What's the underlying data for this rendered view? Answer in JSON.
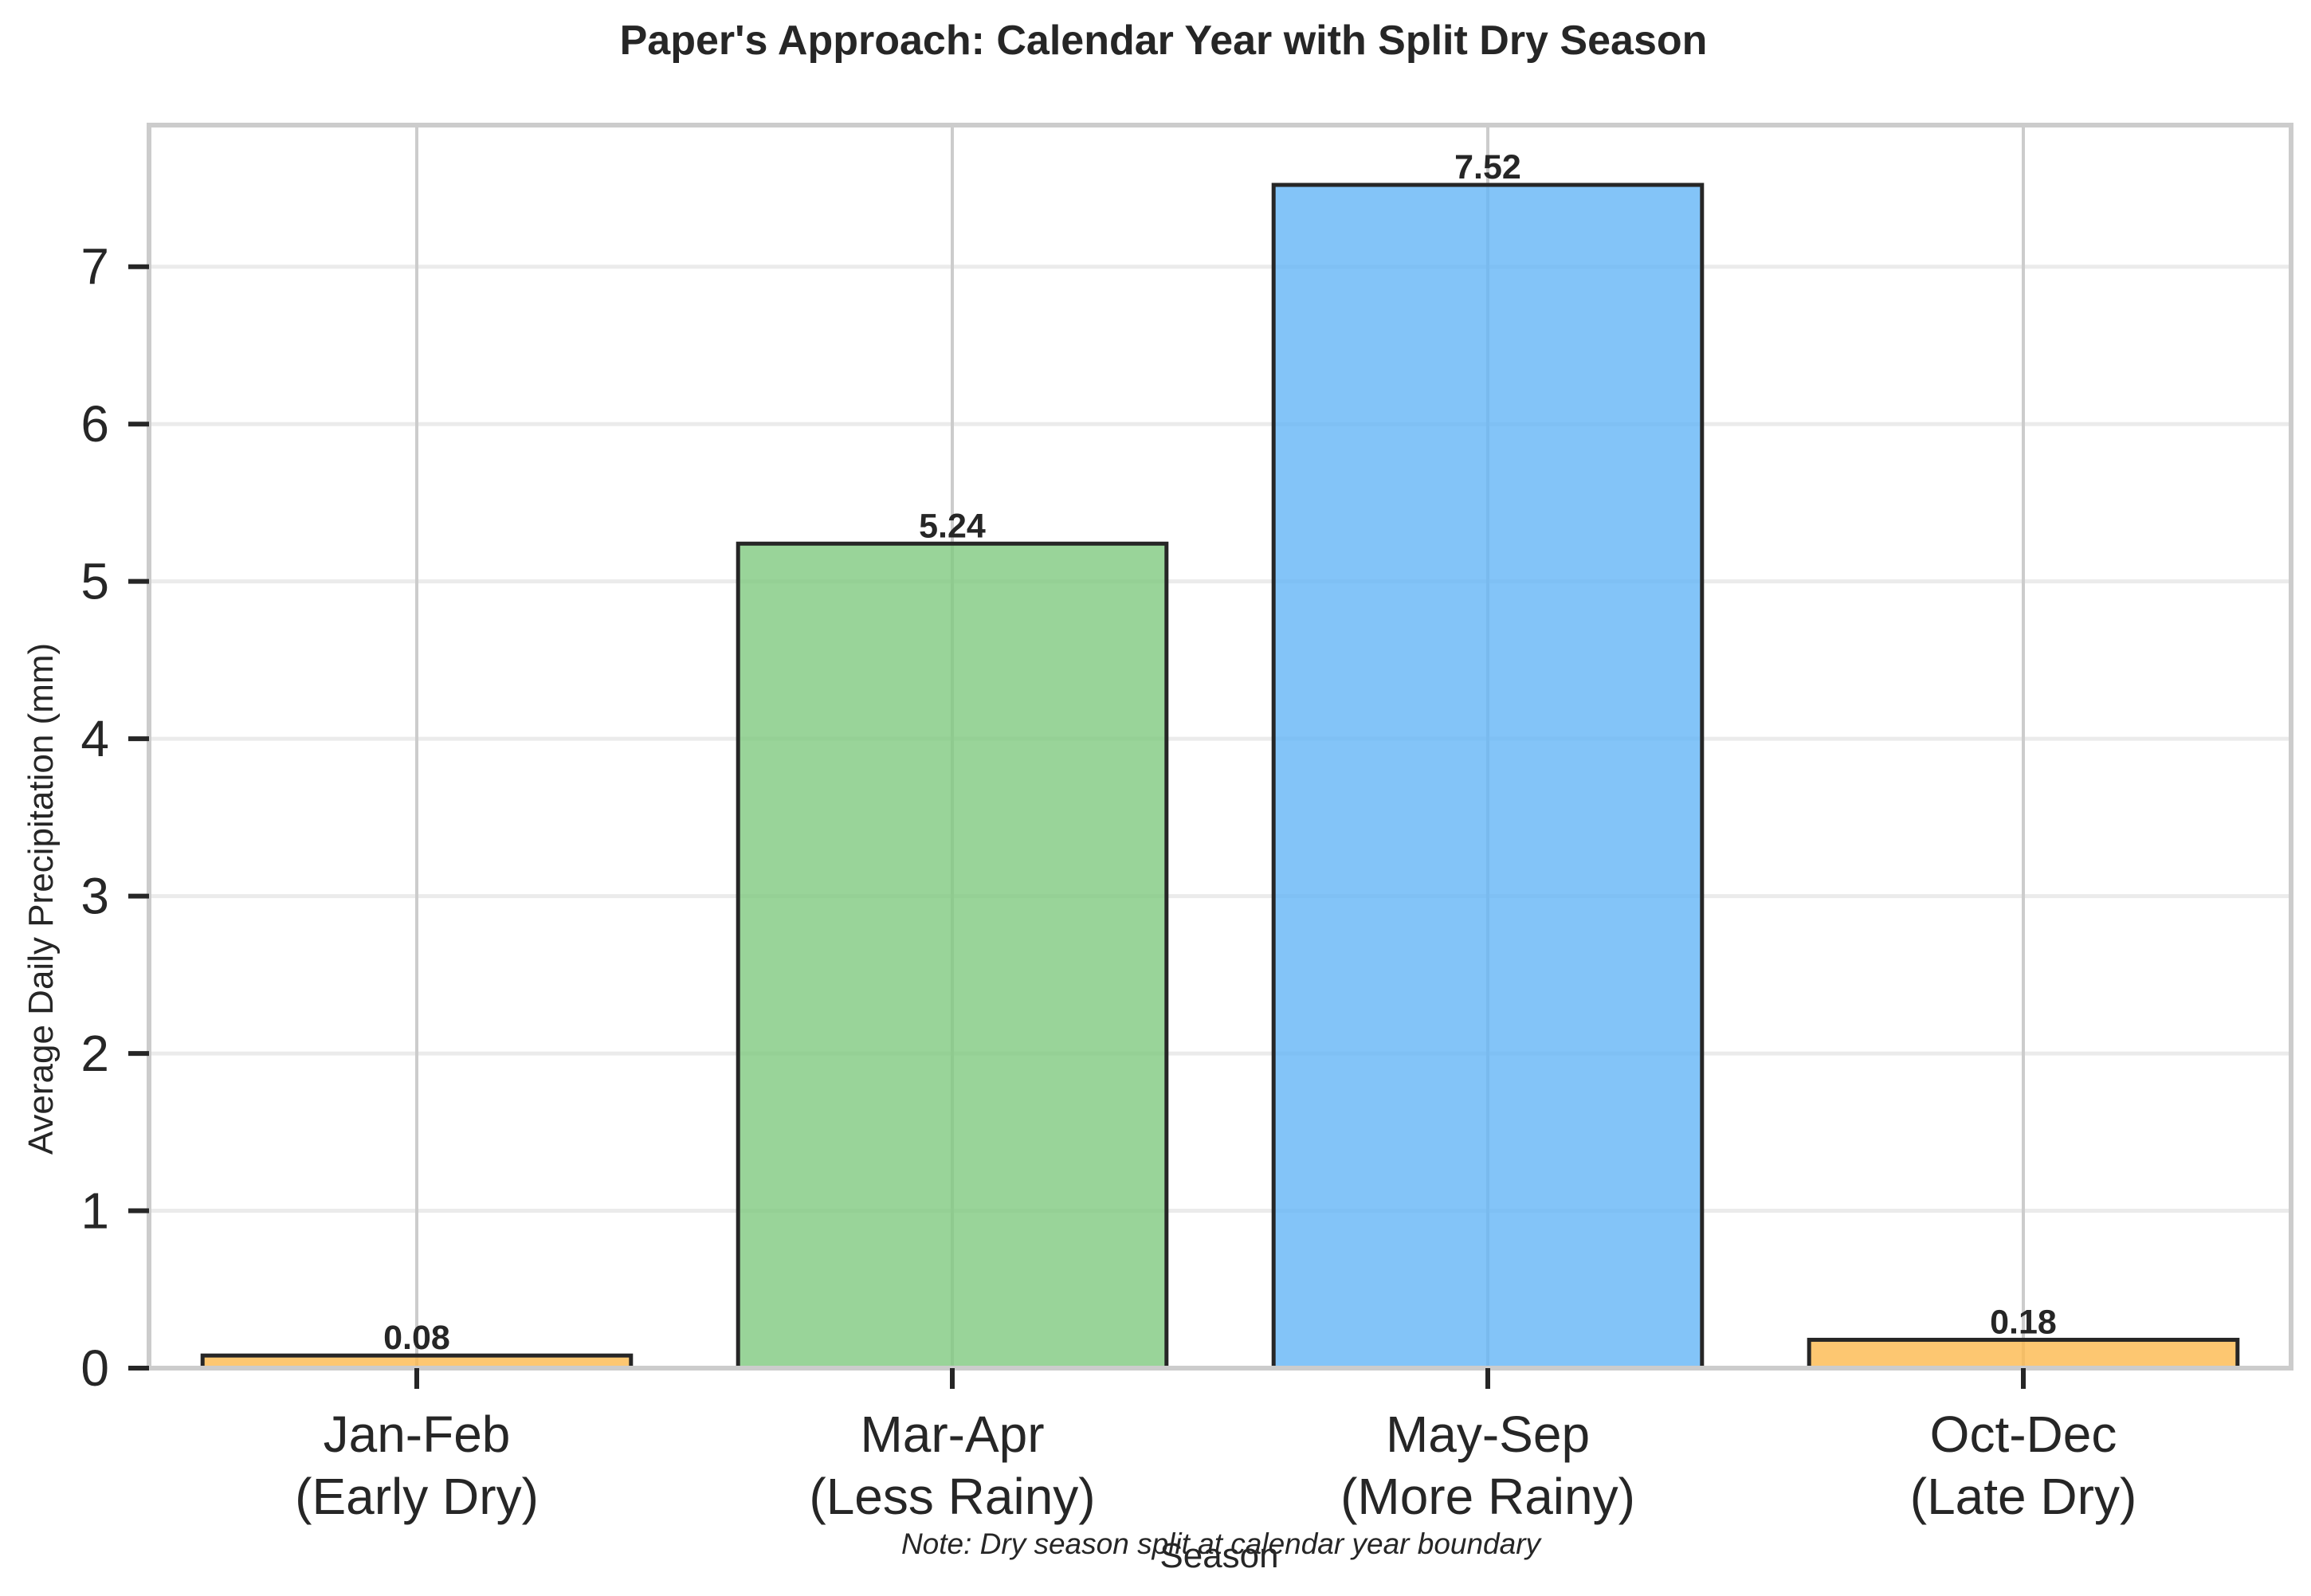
{
  "chart_data": {
    "type": "bar",
    "title": "Paper's Approach: Calendar Year with Split Dry Season",
    "xlabel": "Season",
    "ylabel": "Average Daily Precipitation (mm)",
    "categories": [
      [
        "Jan-Feb",
        "(Early Dry)"
      ],
      [
        "Mar-Apr",
        "(Less Rainy)"
      ],
      [
        "May-Sep",
        "(More Rainy)"
      ],
      [
        "Oct-Dec",
        "(Late Dry)"
      ]
    ],
    "values": [
      0.08,
      5.24,
      7.52,
      0.18
    ],
    "value_labels": [
      "0.08",
      "5.24",
      "7.52",
      "0.18"
    ],
    "bar_colors": [
      "#FDB94E",
      "#7FC97F",
      "#64B5F6",
      "#FDB94E"
    ],
    "ylim": [
      0,
      7.9
    ],
    "yticks": [
      0,
      1,
      2,
      3,
      4,
      5,
      6,
      7
    ],
    "grid": true,
    "legend": "none",
    "note": "Note: Dry season split at calendar year boundary"
  }
}
